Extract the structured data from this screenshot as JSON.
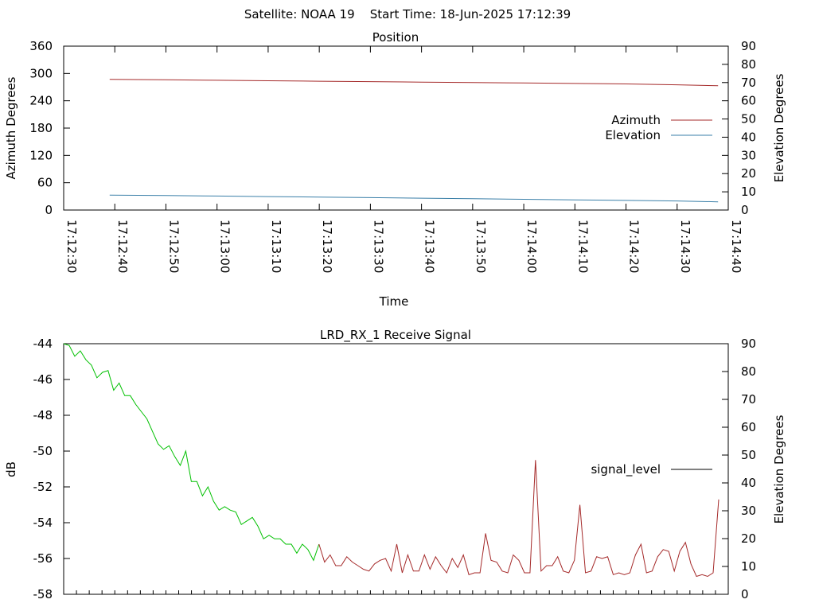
{
  "header": {
    "title": "Satellite: NOAA 19    Start Time: 18-Jun-2025 17:12:39"
  },
  "colors": {
    "azimuth": "#a52a2a",
    "elevation": "#3a7fa8",
    "signal_low": "#00c000",
    "signal_high": "#a52a2a"
  },
  "chart_data": [
    {
      "type": "line",
      "title": "Position",
      "xlabel": "Time",
      "ylabel": "Azimuth Degrees",
      "y2label": "Elevation Degrees",
      "xlim": [
        "17:12:30",
        "17:14:40"
      ],
      "ylim": [
        0,
        360
      ],
      "y2lim": [
        0,
        90
      ],
      "x_ticks": [
        "17:12:30",
        "17:12:40",
        "17:12:50",
        "17:13:00",
        "17:13:10",
        "17:13:20",
        "17:13:30",
        "17:13:40",
        "17:13:50",
        "17:14:00",
        "17:14:10",
        "17:14:20",
        "17:14:30",
        "17:14:40"
      ],
      "y_ticks": [
        "0",
        "60",
        "120",
        "180",
        "240",
        "300",
        "360"
      ],
      "y2_ticks": [
        "0",
        "10",
        "20",
        "30",
        "40",
        "50",
        "60",
        "70",
        "80",
        "90"
      ],
      "legend_position": "right",
      "series": [
        {
          "name": "Azimuth",
          "axis": "left",
          "x": [
            "17:12:39",
            "17:12:50",
            "17:13:00",
            "17:13:10",
            "17:13:20",
            "17:13:30",
            "17:13:40",
            "17:13:50",
            "17:14:00",
            "17:14:10",
            "17:14:20",
            "17:14:30",
            "17:14:38"
          ],
          "values": [
            287,
            286,
            285,
            284,
            283,
            282,
            281,
            280,
            279,
            278,
            277,
            275,
            273
          ]
        },
        {
          "name": "Elevation",
          "axis": "right",
          "x": [
            "17:12:39",
            "17:12:50",
            "17:13:00",
            "17:13:10",
            "17:13:20",
            "17:13:30",
            "17:13:40",
            "17:13:50",
            "17:14:00",
            "17:14:10",
            "17:14:20",
            "17:14:30",
            "17:14:38"
          ],
          "values": [
            8.2,
            8.0,
            7.7,
            7.4,
            7.1,
            6.8,
            6.5,
            6.2,
            5.9,
            5.6,
            5.3,
            5.0,
            4.5
          ]
        }
      ]
    },
    {
      "type": "line",
      "title": "LRD_RX_1 Receive Signal",
      "ylabel": "dB",
      "y2label": "Elevation Degrees",
      "ylim": [
        -58,
        -44
      ],
      "y2lim": [
        0,
        90
      ],
      "y_ticks": [
        "-44",
        "-46",
        "-48",
        "-50",
        "-52",
        "-54",
        "-56",
        "-58"
      ],
      "y2_ticks": [
        "0",
        "10",
        "20",
        "30",
        "40",
        "50",
        "60",
        "70",
        "80",
        "90"
      ],
      "legend_position": "right",
      "series": [
        {
          "name": "signal_level",
          "values": [
            -44.0,
            -44.1,
            -44.7,
            -44.4,
            -44.9,
            -45.2,
            -45.9,
            -45.6,
            -45.5,
            -46.6,
            -46.2,
            -46.9,
            -46.9,
            -47.4,
            -47.8,
            -48.2,
            -48.9,
            -49.6,
            -49.9,
            -49.7,
            -50.3,
            -50.8,
            -50.0,
            -51.7,
            -51.7,
            -52.5,
            -52.0,
            -52.8,
            -53.3,
            -53.1,
            -53.3,
            -53.4,
            -54.1,
            -53.9,
            -53.7,
            -54.2,
            -54.9,
            -54.7,
            -54.9,
            -54.9,
            -55.2,
            -55.2,
            -55.7,
            -55.2,
            -55.5,
            -56.1,
            -55.2,
            -56.2,
            -55.8,
            -56.4,
            -56.4,
            -55.9,
            -56.2,
            -56.4,
            -56.6,
            -56.7,
            -56.3,
            -56.1,
            -56.0,
            -56.7,
            -55.2,
            -56.8,
            -55.8,
            -56.7,
            -56.7,
            -55.8,
            -56.6,
            -55.9,
            -56.4,
            -56.8,
            -56.0,
            -56.5,
            -55.8,
            -56.9,
            -56.8,
            -56.8,
            -54.6,
            -56.1,
            -56.2,
            -56.7,
            -56.8,
            -55.8,
            -56.1,
            -56.8,
            -56.8,
            -50.5,
            -56.7,
            -56.4,
            -56.4,
            -55.9,
            -56.7,
            -56.8,
            -56.1,
            -53.0,
            -56.8,
            -56.7,
            -55.9,
            -56.0,
            -55.9,
            -56.9,
            -56.8,
            -56.9,
            -56.8,
            -55.8,
            -55.2,
            -56.8,
            -56.7,
            -55.9,
            -55.5,
            -55.6,
            -56.7,
            -55.6,
            -55.1,
            -56.3,
            -57.0,
            -56.9,
            -57.0,
            -56.8,
            -52.7
          ]
        }
      ]
    }
  ]
}
